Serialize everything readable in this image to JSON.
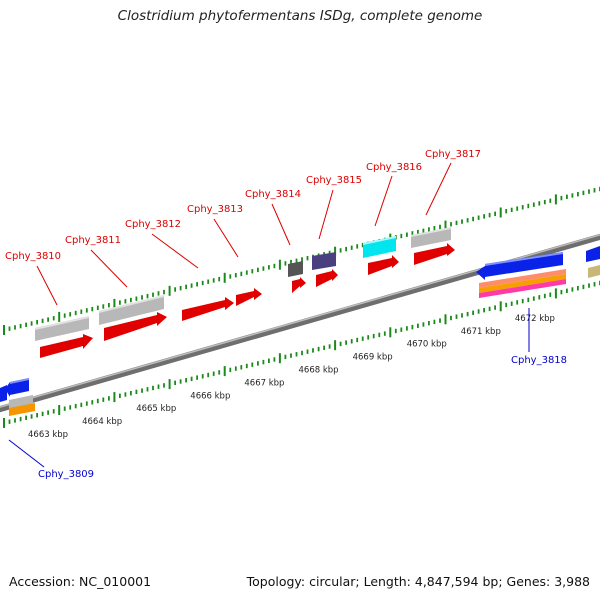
{
  "title": "Clostridium phytofermentans ISDg, complete genome",
  "footer": {
    "accession": "Accession: NC_010001",
    "summary": "Topology: circular; Length: 4,847,594 bp; Genes: 3,988"
  },
  "colors": {
    "tick": "#1a8a1a",
    "backbone": "#8c8c8c",
    "forward_label": "#dd0000",
    "reverse_label": "#0000cc"
  },
  "scale_labels": [
    "4663 kbp",
    "4664 kbp",
    "4665 kbp",
    "4666 kbp",
    "4667 kbp",
    "4668 kbp",
    "4669 kbp",
    "4670 kbp",
    "4671 kbp",
    "4672 kbp"
  ],
  "genes": [
    {
      "name": "Cphy_3809",
      "strand": "reverse"
    },
    {
      "name": "Cphy_3810",
      "strand": "forward"
    },
    {
      "name": "Cphy_3811",
      "strand": "forward"
    },
    {
      "name": "Cphy_3812",
      "strand": "forward"
    },
    {
      "name": "Cphy_3813",
      "strand": "forward"
    },
    {
      "name": "Cphy_3814",
      "strand": "forward"
    },
    {
      "name": "Cphy_3815",
      "strand": "forward"
    },
    {
      "name": "Cphy_3816",
      "strand": "forward"
    },
    {
      "name": "Cphy_3817",
      "strand": "forward"
    },
    {
      "name": "Cphy_3818",
      "strand": "reverse"
    }
  ]
}
